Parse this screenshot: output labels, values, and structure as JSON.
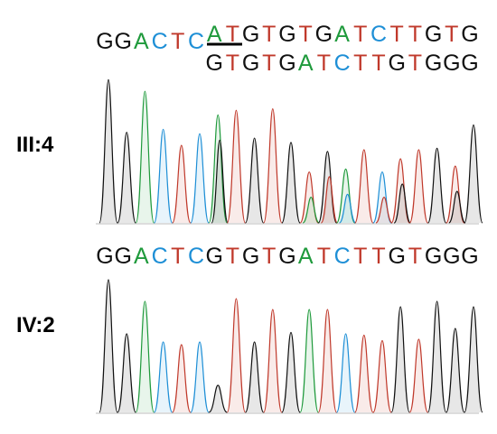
{
  "panels": [
    {
      "label": "III:4",
      "sequence_left": "GGACTC",
      "sequence_allele1": "ATGTGTGATCTTGTG",
      "sequence_allele2": "GTGTGATCTTGTGGG"
    },
    {
      "label": "IV:2",
      "sequence": "GGACTCGTGTGATCTTGTGGG"
    }
  ]
}
